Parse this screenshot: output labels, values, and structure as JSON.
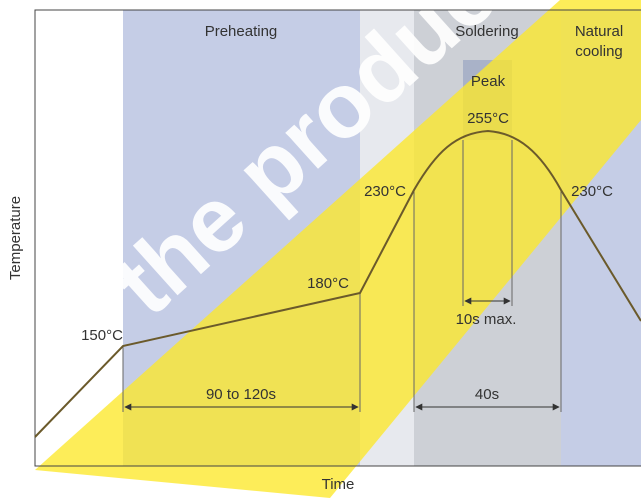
{
  "zones": {
    "preheating": "Preheating",
    "soldering": "Soldering",
    "cooling_line1": "Natural",
    "cooling_line2": "cooling",
    "peak": "Peak"
  },
  "temperatures": {
    "t150": "150°C",
    "t180": "180°C",
    "t230_rise": "230°C",
    "t255": "255°C",
    "t230_fall": "230°C"
  },
  "durations": {
    "preheat": "90 to 120s",
    "above230": "40s",
    "peak": "10s max."
  },
  "axes": {
    "x": "Time",
    "y": "Temperature"
  },
  "watermark": "the product store",
  "colors": {
    "blue_zone": "#c5cde6",
    "gray_zone": "#cdd0d6",
    "peak_zone": "#a9b2c8",
    "curve": "#6b5a2b",
    "watermark": "#fde82a"
  }
}
